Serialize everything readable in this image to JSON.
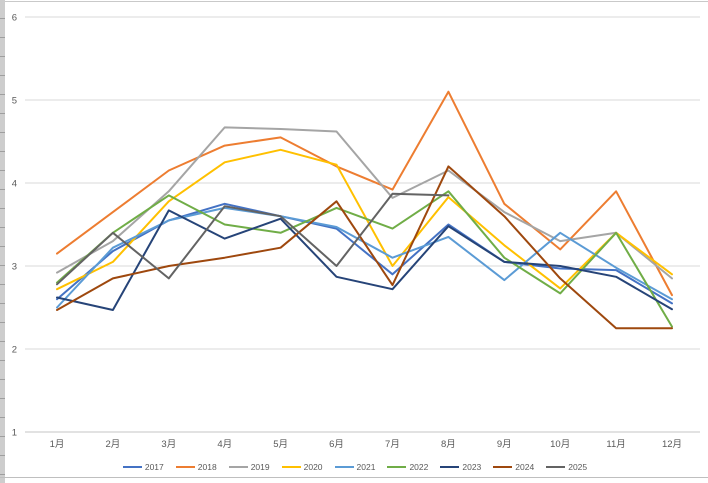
{
  "chart_data": {
    "type": "line",
    "title": "",
    "xlabel": "",
    "ylabel": "",
    "categories": [
      "1月",
      "2月",
      "3月",
      "4月",
      "5月",
      "6月",
      "7月",
      "8月",
      "9月",
      "10月",
      "11月",
      "12月"
    ],
    "yticks": [
      "1",
      "2",
      "3",
      "4",
      "5",
      "6"
    ],
    "ylim": [
      1,
      6
    ],
    "grid": true,
    "legend_position": "bottom",
    "series": [
      {
        "name": "2017",
        "color": "#4472C4",
        "values": [
          2.6,
          3.18,
          3.55,
          3.75,
          3.6,
          3.45,
          2.9,
          3.5,
          3.05,
          2.97,
          2.95,
          2.55
        ]
      },
      {
        "name": "2018",
        "color": "#ED7D31",
        "values": [
          3.15,
          3.65,
          4.15,
          4.45,
          4.55,
          4.2,
          3.92,
          5.1,
          3.75,
          3.2,
          3.9,
          2.65
        ]
      },
      {
        "name": "2019",
        "color": "#A5A5A5",
        "values": [
          2.92,
          3.3,
          3.9,
          4.67,
          4.65,
          4.62,
          3.82,
          4.15,
          3.65,
          3.3,
          3.4,
          2.85
        ]
      },
      {
        "name": "2020",
        "color": "#FFC000",
        "values": [
          2.72,
          3.05,
          3.78,
          4.25,
          4.4,
          4.22,
          3.0,
          3.83,
          3.25,
          2.73,
          3.4,
          2.9
        ]
      },
      {
        "name": "2021",
        "color": "#5B9BD5",
        "values": [
          2.5,
          3.22,
          3.55,
          3.7,
          3.6,
          3.47,
          3.1,
          3.35,
          2.83,
          3.4,
          2.98,
          2.6
        ]
      },
      {
        "name": "2022",
        "color": "#70AD47",
        "values": [
          2.8,
          3.4,
          3.85,
          3.5,
          3.4,
          3.7,
          3.45,
          3.9,
          3.1,
          2.67,
          3.4,
          2.27
        ]
      },
      {
        "name": "2023",
        "color": "#264478",
        "values": [
          2.62,
          2.47,
          3.67,
          3.33,
          3.57,
          2.87,
          2.72,
          3.48,
          3.05,
          3.0,
          2.87,
          2.48
        ]
      },
      {
        "name": "2024",
        "color": "#9E480E",
        "values": [
          2.47,
          2.85,
          3.0,
          3.1,
          3.22,
          3.78,
          2.77,
          4.2,
          3.6,
          2.85,
          2.25,
          2.25
        ]
      },
      {
        "name": "2025",
        "color": "#636363",
        "values": [
          2.78,
          3.4,
          2.85,
          3.72,
          3.6,
          3.0,
          3.87,
          3.85,
          null,
          null,
          null,
          null
        ]
      }
    ],
    "colors": {
      "gridline": "#D9D9D9",
      "axis_line": "#C6C6C6",
      "tick_text": "#595959",
      "background": "#FFFFFF"
    }
  }
}
